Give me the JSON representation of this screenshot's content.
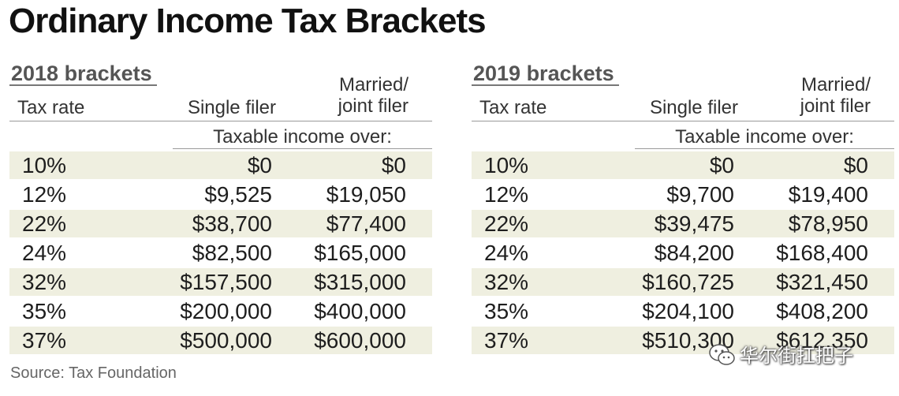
{
  "title": "Ordinary Income Tax Brackets",
  "column_headers": {
    "tax_rate": "Tax rate",
    "single": "Single filer",
    "married_line1": "Married/",
    "married_line2": "joint filer",
    "subheader": "Taxable income over:"
  },
  "tables": [
    {
      "heading": "2018 brackets",
      "rows": [
        {
          "rate": "10%",
          "single": "$0",
          "married": "$0"
        },
        {
          "rate": "12%",
          "single": "$9,525",
          "married": "$19,050"
        },
        {
          "rate": "22%",
          "single": "$38,700",
          "married": "$77,400"
        },
        {
          "rate": "24%",
          "single": "$82,500",
          "married": "$165,000"
        },
        {
          "rate": "32%",
          "single": "$157,500",
          "married": "$315,000"
        },
        {
          "rate": "35%",
          "single": "$200,000",
          "married": "$400,000"
        },
        {
          "rate": "37%",
          "single": "$500,000",
          "married": "$600,000"
        }
      ]
    },
    {
      "heading": "2019 brackets",
      "rows": [
        {
          "rate": "10%",
          "single": "$0",
          "married": "$0"
        },
        {
          "rate": "12%",
          "single": "$9,700",
          "married": "$19,400"
        },
        {
          "rate": "22%",
          "single": "$39,475",
          "married": "$78,950"
        },
        {
          "rate": "24%",
          "single": "$84,200",
          "married": "$168,400"
        },
        {
          "rate": "32%",
          "single": "$160,725",
          "married": "$321,450"
        },
        {
          "rate": "35%",
          "single": "$204,100",
          "married": "$408,200"
        },
        {
          "rate": "37%",
          "single": "$510,300",
          "married": "$612,350"
        }
      ]
    }
  ],
  "source": "Source: Tax Foundation",
  "watermark": {
    "text": "华尔街扛把子",
    "icon": "wechat-icon"
  },
  "colors": {
    "row_shade": "#efefe0",
    "heading_gray": "#555555",
    "text": "#222222"
  }
}
